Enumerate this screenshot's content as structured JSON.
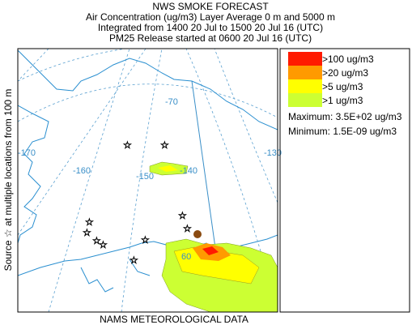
{
  "header": {
    "title": "NWS SMOKE FORECAST",
    "lines": [
      "Air Concentration (ug/m3) Layer Average    0 m and  5000 m",
      "Integrated from 1400 20 Jul to 1500 20 Jul 16 (UTC)",
      "PM25 Release started at 0600 20 Jul 16 (UTC)"
    ]
  },
  "side_label": "Source ☆ at multiple locations   from   100 m",
  "footer": "NAMS METEOROLOGICAL DATA",
  "map": {
    "grid_labels": [
      "-70",
      "-170",
      "-160",
      "-150",
      "-140",
      "-130",
      "60"
    ]
  },
  "legend": {
    "items": [
      {
        "label": ">100 ug/m3",
        "color": "#ff1a00"
      },
      {
        "label": ">20 ug/m3",
        "color": "#ff9a00"
      },
      {
        "label": ">5 ug/m3",
        "color": "#ffff00"
      },
      {
        "label": ">1 ug/m3",
        "color": "#ccff33"
      }
    ],
    "maximum": "Maximum: 3.5E+02 ug/m3",
    "minimum": "Minimum: 1.5E-09 ug/m3"
  }
}
